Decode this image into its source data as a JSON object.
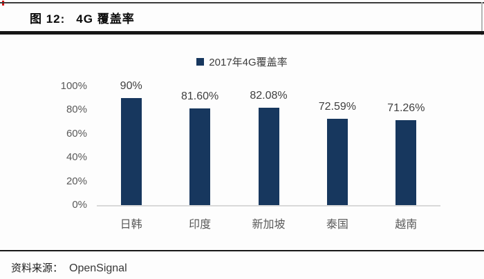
{
  "header": {
    "figure_label": "图 12:",
    "figure_title": "4G 覆盖率"
  },
  "legend": {
    "label": "2017年4G覆盖率",
    "swatch_color": "#17375e"
  },
  "chart_data": {
    "type": "bar",
    "title": "2017年4G覆盖率",
    "categories": [
      "日韩",
      "印度",
      "新加坡",
      "泰国",
      "越南"
    ],
    "values": [
      90,
      81.6,
      82.08,
      72.59,
      71.26
    ],
    "value_labels": [
      "90%",
      "81.60%",
      "82.08%",
      "72.59%",
      "71.26%"
    ],
    "y_ticks": [
      "100%",
      "80%",
      "60%",
      "40%",
      "20%",
      "0%"
    ],
    "ylim": [
      0,
      100
    ],
    "xlabel": "",
    "ylabel": "",
    "grid": false,
    "legend_position": "top-center",
    "bar_color": "#17375e",
    "axis_line_color": "#d9d9d9",
    "tick_color": "#595959"
  },
  "footer": {
    "source_label": "资料来源：",
    "source_value": "OpenSignal"
  }
}
